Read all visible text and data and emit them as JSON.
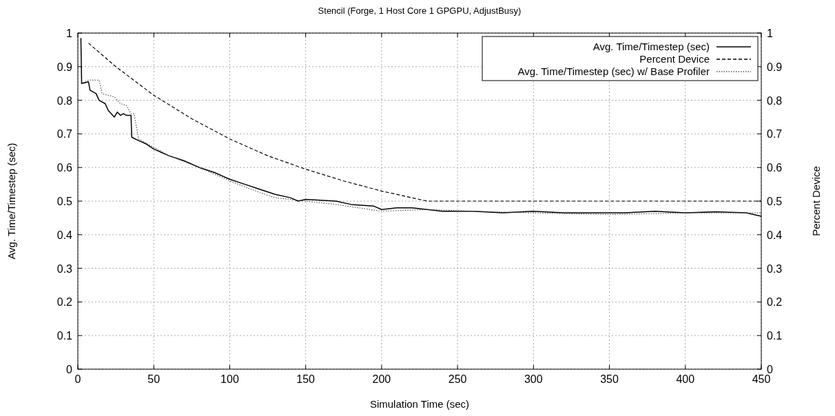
{
  "chart_data": {
    "type": "line",
    "title": "Stencil (Forge, 1 Host Core  1 GPGPU, AdjustBusy)",
    "xlabel": "Simulation Time (sec)",
    "ylabel": "Avg. Time/Timestep (sec)",
    "y2label": "Percent Device",
    "xlim": [
      0,
      450
    ],
    "xticks": [
      0,
      50,
      100,
      150,
      200,
      250,
      300,
      350,
      400,
      450
    ],
    "ylim": [
      0,
      1
    ],
    "yticks": [
      0,
      0.1,
      0.2,
      0.3,
      0.4,
      0.5,
      0.6,
      0.7,
      0.8,
      0.9,
      1
    ],
    "y2lim": [
      0,
      1
    ],
    "y2ticks": [
      0,
      0.1,
      0.2,
      0.3,
      0.4,
      0.5,
      0.6,
      0.7,
      0.8,
      0.9,
      1
    ],
    "grid": true,
    "legend": "top right",
    "series": [
      {
        "name": "Avg. Time/Timestep (sec)",
        "color": "#000000",
        "line_style": "solid",
        "x": [
          2,
          2.5,
          7,
          8,
          12,
          14,
          18,
          20,
          24,
          26,
          28,
          30,
          32,
          35,
          35.5,
          40,
          45,
          50,
          55,
          60,
          70,
          80,
          90,
          100,
          110,
          120,
          130,
          140,
          145,
          150,
          170,
          180,
          195,
          200,
          210,
          220,
          230,
          240,
          260,
          280,
          300,
          320,
          340,
          360,
          380,
          400,
          420,
          440,
          450
        ],
        "values": [
          0.985,
          0.85,
          0.855,
          0.83,
          0.82,
          0.8,
          0.79,
          0.77,
          0.75,
          0.765,
          0.755,
          0.76,
          0.755,
          0.755,
          0.69,
          0.68,
          0.67,
          0.655,
          0.645,
          0.635,
          0.62,
          0.6,
          0.585,
          0.565,
          0.55,
          0.535,
          0.52,
          0.51,
          0.5,
          0.505,
          0.5,
          0.49,
          0.485,
          0.475,
          0.48,
          0.48,
          0.475,
          0.47,
          0.47,
          0.465,
          0.47,
          0.465,
          0.465,
          0.465,
          0.47,
          0.465,
          0.468,
          0.465,
          0.455
        ]
      },
      {
        "name": "Percent Device",
        "color": "#000000",
        "line_style": "dashed",
        "x": [
          7,
          25,
          50,
          75,
          100,
          125,
          150,
          175,
          200,
          230,
          260,
          300,
          350,
          400,
          450
        ],
        "values": [
          0.97,
          0.9,
          0.815,
          0.745,
          0.685,
          0.635,
          0.595,
          0.56,
          0.53,
          0.5,
          0.5,
          0.5,
          0.5,
          0.5,
          0.5
        ]
      },
      {
        "name": "Avg. Time/Timestep (sec) w/ Base Profiler",
        "color": "#555555",
        "line_style": "dotted",
        "x": [
          2,
          7,
          14,
          16,
          24,
          28,
          32,
          35,
          37,
          40,
          50,
          60,
          80,
          100,
          120,
          130,
          150,
          170,
          200,
          230,
          260,
          300,
          350,
          400,
          450
        ],
        "values": [
          0.85,
          0.86,
          0.86,
          0.82,
          0.81,
          0.79,
          0.785,
          0.76,
          0.76,
          0.685,
          0.66,
          0.635,
          0.6,
          0.56,
          0.525,
          0.51,
          0.5,
          0.49,
          0.47,
          0.475,
          0.47,
          0.465,
          0.46,
          0.465,
          0.465
        ]
      }
    ]
  }
}
